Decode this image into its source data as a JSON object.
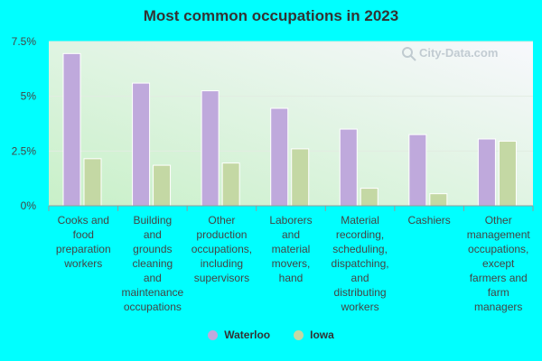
{
  "chart_data": {
    "type": "bar",
    "title": "Most common occupations in 2023",
    "categories": [
      "Cooks and food preparation workers",
      "Building and grounds cleaning and maintenance occupations",
      "Other production occupations, including supervisors",
      "Laborers and material movers, hand",
      "Material recording, scheduling, dispatching, and distributing workers",
      "Cashiers",
      "Other management occupations, except farmers and farm managers"
    ],
    "category_lines": [
      [
        "Cooks and",
        "food",
        "preparation",
        "workers"
      ],
      [
        "Building",
        "and",
        "grounds",
        "cleaning",
        "and",
        "maintenance",
        "occupations"
      ],
      [
        "Other",
        "production",
        "occupations,",
        "including",
        "supervisors"
      ],
      [
        "Laborers",
        "and",
        "material",
        "movers,",
        "hand"
      ],
      [
        "Material",
        "recording,",
        "scheduling,",
        "dispatching,",
        "and",
        "distributing",
        "workers"
      ],
      [
        "Cashiers"
      ],
      [
        "Other",
        "management",
        "occupations,",
        "except",
        "farmers and",
        "farm",
        "managers"
      ]
    ],
    "series": [
      {
        "name": "Waterloo",
        "color": "#bfa9dc",
        "values": [
          6.95,
          5.6,
          5.25,
          4.45,
          3.5,
          3.25,
          3.05
        ]
      },
      {
        "name": "Iowa",
        "color": "#c4d8a4",
        "values": [
          2.15,
          1.85,
          1.95,
          2.6,
          0.8,
          0.55,
          2.95
        ]
      }
    ],
    "ylim": [
      0,
      7.5
    ],
    "yticks": [
      0,
      2.5,
      5,
      7.5
    ],
    "ytick_labels": [
      "0%",
      "2.5%",
      "5%",
      "7.5%"
    ],
    "grid": true,
    "legend_position": "bottom"
  },
  "watermark": "City-Data.com"
}
